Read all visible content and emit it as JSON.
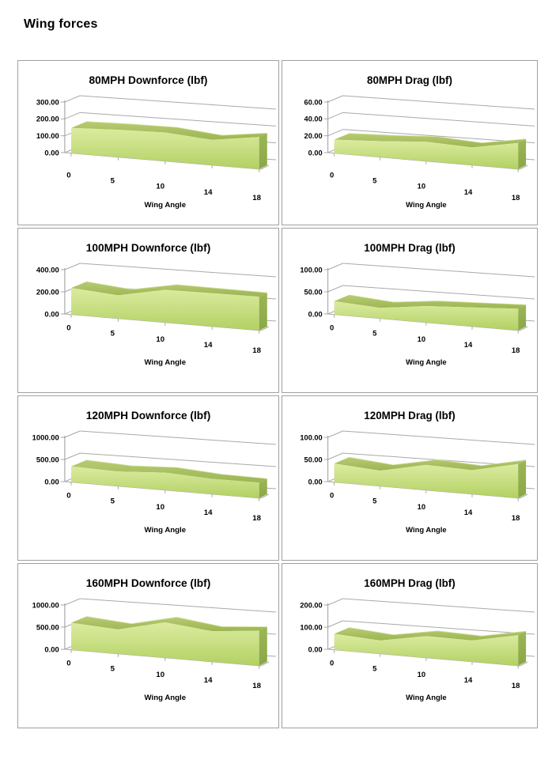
{
  "page": {
    "title": "Wing forces"
  },
  "colors": {
    "chart_border": "#a0a0a0",
    "grid_line": "#a9a9a9",
    "axis_line": "#9b9b9b",
    "text": "#000000",
    "area_front_light": "#dcebA0",
    "area_front_dark": "#b2d163",
    "area_ribbon_light": "#b8cc74",
    "area_ribbon_dark": "#9cb551",
    "area_side_light": "#9cb655",
    "area_side_dark": "#8aa746",
    "area_highlight": "#d3e29c"
  },
  "chart_data": [
    {
      "type": "area",
      "title": "80MPH Downforce (lbf)",
      "xlabel": "Wing Angle",
      "categories": [
        "0",
        "5",
        "10",
        "14",
        "18"
      ],
      "values": [
        150,
        162,
        170,
        150,
        190
      ],
      "yticks": [
        "0.00",
        "100.00",
        "200.00",
        "300.00"
      ],
      "ylim": [
        0,
        300
      ],
      "grid": true,
      "legend": "none"
    },
    {
      "type": "area",
      "title": "80MPH Drag (lbf)",
      "xlabel": "Wing Angle",
      "categories": [
        "0",
        "5",
        "10",
        "14",
        "18"
      ],
      "values": [
        16,
        19,
        23,
        21,
        31
      ],
      "yticks": [
        "0.00",
        "20.00",
        "40.00",
        "60.00"
      ],
      "ylim": [
        0,
        60
      ],
      "grid": true,
      "legend": "none"
    },
    {
      "type": "area",
      "title": "100MPH Downforce (lbf)",
      "xlabel": "Wing Angle",
      "categories": [
        "0",
        "5",
        "10",
        "14",
        "18"
      ],
      "values": [
        240,
        210,
        295,
        300,
        305
      ],
      "yticks": [
        "0.00",
        "200.00",
        "400.00"
      ],
      "ylim": [
        0,
        400
      ],
      "grid": true,
      "legend": "none"
    },
    {
      "type": "area",
      "title": "100MPH Drag (lbf)",
      "xlabel": "Wing Angle",
      "categories": [
        "0",
        "5",
        "10",
        "14",
        "18"
      ],
      "values": [
        30,
        24,
        37,
        43,
        49
      ],
      "yticks": [
        "0.00",
        "50.00",
        "100.00"
      ],
      "ylim": [
        0,
        100
      ],
      "grid": true,
      "legend": "none"
    },
    {
      "type": "area",
      "title": "120MPH Downforce (lbf)",
      "xlabel": "Wing Angle",
      "categories": [
        "0",
        "5",
        "10",
        "14",
        "18"
      ],
      "values": [
        355,
        330,
        395,
        345,
        350
      ],
      "yticks": [
        "0.00",
        "500.00",
        "1000.00"
      ],
      "ylim": [
        0,
        1000
      ],
      "grid": true,
      "legend": "none"
    },
    {
      "type": "area",
      "title": "120MPH Drag (lbf)",
      "xlabel": "Wing Angle",
      "categories": [
        "0",
        "5",
        "10",
        "14",
        "18"
      ],
      "values": [
        42,
        35,
        57,
        54,
        77
      ],
      "yticks": [
        "0.00",
        "50.00",
        "100.00"
      ],
      "ylim": [
        0,
        100
      ],
      "grid": true,
      "legend": "none"
    },
    {
      "type": "area",
      "title": "160MPH Downforce (lbf)",
      "xlabel": "Wing Angle",
      "categories": [
        "0",
        "5",
        "10",
        "14",
        "18"
      ],
      "values": [
        610,
        550,
        800,
        690,
        790
      ],
      "yticks": [
        "0.00",
        "500.00",
        "1000.00"
      ],
      "ylim": [
        0,
        1000
      ],
      "grid": true,
      "legend": "none"
    },
    {
      "type": "area",
      "title": "160MPH Drag (lbf)",
      "xlabel": "Wing Angle",
      "categories": [
        "0",
        "5",
        "10",
        "14",
        "18"
      ],
      "values": [
        72,
        60,
        98,
        96,
        138
      ],
      "yticks": [
        "0.00",
        "100.00",
        "200.00"
      ],
      "ylim": [
        0,
        200
      ],
      "grid": true,
      "legend": "none"
    }
  ]
}
